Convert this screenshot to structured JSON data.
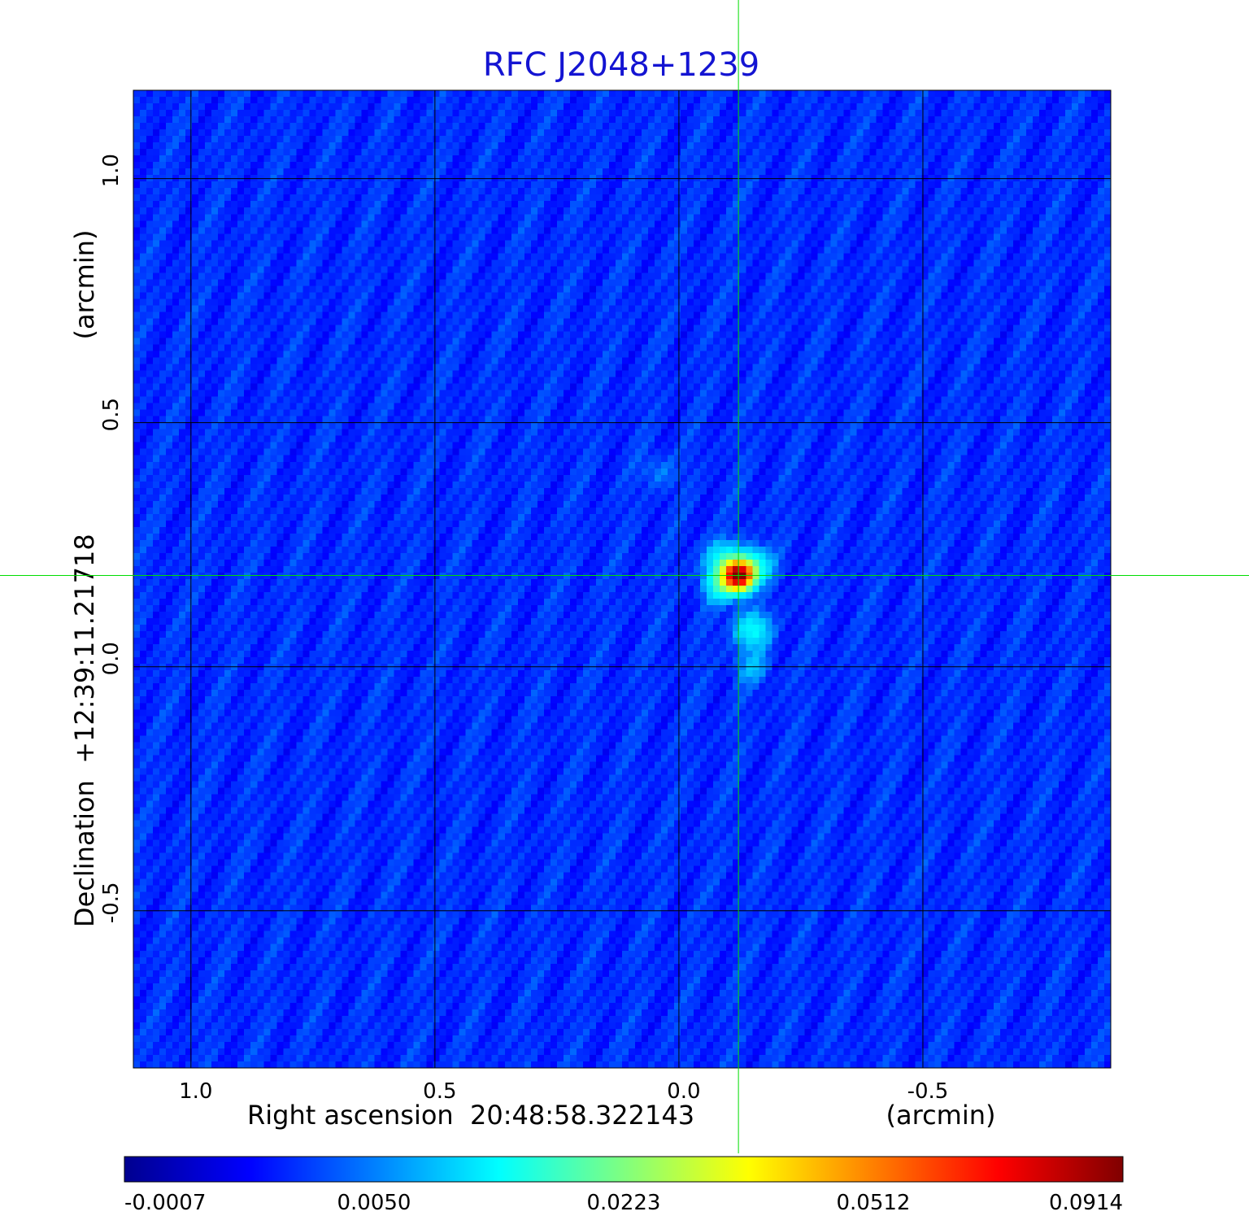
{
  "chart_data": {
    "type": "heatmap",
    "title": "RFC J2048+1239",
    "title_color": "#1414d2",
    "xlabel": "Right ascension  20:48:58.322143",
    "xunit": "(arcmin)",
    "ylabel": "Declination  +12:39:11.21718",
    "yunit": "(arcmin)",
    "x_ticks": [
      1.0,
      0.5,
      0.0,
      -0.5
    ],
    "x_tick_labels": [
      "1.0",
      "0.5",
      "0.0",
      "-0.5"
    ],
    "y_ticks": [
      1.0,
      0.5,
      0.0,
      -0.5
    ],
    "y_tick_labels": [
      "1.0",
      "0.5",
      "0.0",
      "-0.5"
    ],
    "xlim": [
      1.118,
      -0.885
    ],
    "ylim": [
      -0.822,
      1.181
    ],
    "x_reversed": true,
    "grid": true,
    "grid_color": "#000000",
    "crosshair": {
      "x": -0.122,
      "y": 0.187,
      "color": "#00dd00"
    },
    "colormap": "jet",
    "background_value": 0.0015,
    "sources": [
      {
        "x": -0.122,
        "y": 0.187,
        "peak": 0.0914
      },
      {
        "x": -0.09,
        "y": 0.17,
        "peak": 0.012
      },
      {
        "x": -0.152,
        "y": 0.207,
        "peak": 0.011
      },
      {
        "x": -0.09,
        "y": 0.22,
        "peak": 0.009
      },
      {
        "x": -0.15,
        "y": 0.075,
        "peak": 0.0085
      },
      {
        "x": -0.15,
        "y": 0.0,
        "peak": 0.0035
      },
      {
        "x": 0.04,
        "y": 0.4,
        "peak": 0.002
      }
    ],
    "colorbar": {
      "ticks": [
        "-0.0007",
        "0.0050",
        "0.0223",
        "0.0512",
        "0.0914"
      ],
      "min": -0.0007,
      "max": 0.0914
    }
  }
}
